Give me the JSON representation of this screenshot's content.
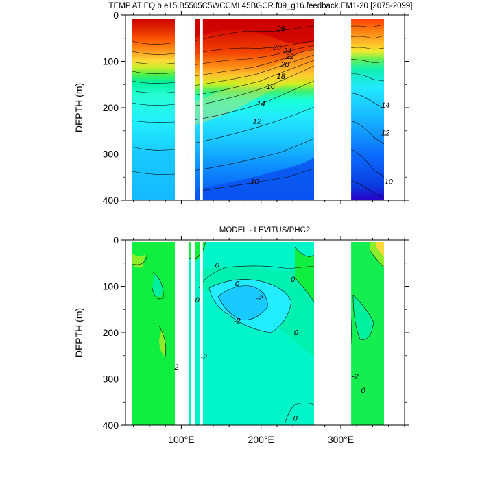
{
  "chart_data": [
    {
      "type": "heatmap",
      "subtype": "filled-contour",
      "title": "TEMP AT EQ b.e15.B5505C5WCCML45BGCR.f09_g16.feedback.EM1-20 [2075-2099]",
      "ylabel": "DEPTH (m)",
      "xlabel": "",
      "xlim": [
        30,
        380
      ],
      "ylim": [
        400,
        0
      ],
      "y_ticks": [
        "0",
        "100",
        "200",
        "300",
        "400"
      ],
      "x_ticks": [],
      "land_gaps_lon": [
        [
          98,
          107
        ],
        [
          110,
          117
        ],
        [
          123,
          127
        ],
        [
          278,
          313
        ]
      ],
      "contour_labels": [
        {
          "text": "26",
          "x": 225,
          "y": 35
        },
        {
          "text": "26",
          "x": 220,
          "y": 75
        },
        {
          "text": "24",
          "x": 233,
          "y": 82
        },
        {
          "text": "22",
          "x": 236,
          "y": 95
        },
        {
          "text": "20",
          "x": 230,
          "y": 112
        },
        {
          "text": "18",
          "x": 225,
          "y": 138
        },
        {
          "text": "16",
          "x": 212,
          "y": 160
        },
        {
          "text": "14",
          "x": 200,
          "y": 197
        },
        {
          "text": "12",
          "x": 195,
          "y": 235
        },
        {
          "text": "10",
          "x": 192,
          "y": 365
        },
        {
          "text": "14",
          "x": 356,
          "y": 200
        },
        {
          "text": "12",
          "x": 356,
          "y": 260
        },
        {
          "text": "10",
          "x": 360,
          "y": 365
        }
      ]
    },
    {
      "type": "heatmap",
      "subtype": "filled-contour",
      "title": "MODEL - LEVITUS/PHC2",
      "ylabel": "DEPTH (m)",
      "xlabel": "",
      "xlim": [
        30,
        380
      ],
      "ylim": [
        400,
        0
      ],
      "y_ticks": [
        "0",
        "100",
        "200",
        "300",
        "400"
      ],
      "x_ticks": [
        "100°E",
        "200°E",
        "300°E"
      ],
      "land_gaps_lon": [
        [
          98,
          107
        ],
        [
          112,
          117
        ],
        [
          123,
          127
        ],
        [
          278,
          313
        ]
      ],
      "contour_labels": [
        {
          "text": "0",
          "x": 145,
          "y": 60
        },
        {
          "text": "0",
          "x": 170,
          "y": 100
        },
        {
          "text": "-2",
          "x": 198,
          "y": 130
        },
        {
          "text": "0",
          "x": 120,
          "y": 135
        },
        {
          "text": "0",
          "x": 240,
          "y": 90
        },
        {
          "text": "-2",
          "x": 170,
          "y": 180
        },
        {
          "text": "0",
          "x": 244,
          "y": 205
        },
        {
          "text": "2",
          "x": 94,
          "y": 280
        },
        {
          "text": "-2",
          "x": 128,
          "y": 258
        },
        {
          "text": "-2",
          "x": 318,
          "y": 300
        },
        {
          "text": "0",
          "x": 328,
          "y": 330
        },
        {
          "text": "0",
          "x": 243,
          "y": 390
        }
      ]
    }
  ]
}
